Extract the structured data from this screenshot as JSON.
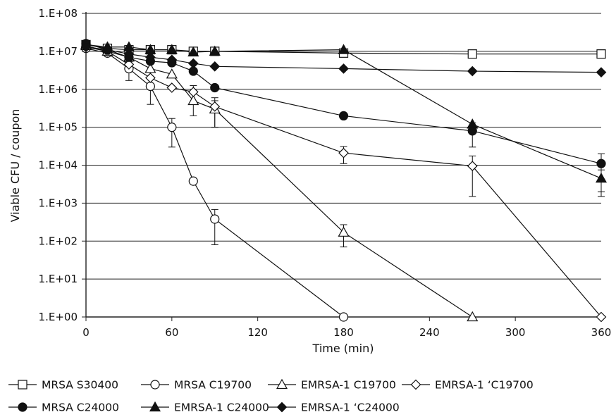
{
  "chart_data": {
    "type": "line",
    "title": "",
    "xlabel": "Time (min)",
    "ylabel": "Viable CFU / coupon",
    "y_scale": "log10",
    "xlim": [
      0,
      360
    ],
    "ylim": [
      1,
      100000000
    ],
    "x_ticks": [
      "0",
      "60",
      "120",
      "180",
      "240",
      "300",
      "360"
    ],
    "y_ticks": [
      "1.E+00",
      "1.E+01",
      "1.E+02",
      "1.E+03",
      "1.E+04",
      "1.E+05",
      "1.E+06",
      "1.E+07",
      "1.E+08"
    ],
    "grid": "horizontal",
    "legend_position": "bottom",
    "series": [
      {
        "name": "MRSA S30400",
        "marker": "square",
        "filled": false,
        "x": [
          0,
          15,
          30,
          45,
          60,
          75,
          90,
          180,
          270,
          360
        ],
        "y": [
          15000000,
          12000000,
          11000000,
          11000000,
          11000000,
          10000000,
          10000000,
          9000000,
          8500000,
          8500000
        ]
      },
      {
        "name": "MRSA C19700",
        "marker": "circle",
        "filled": false,
        "x": [
          0,
          15,
          30,
          45,
          60,
          75,
          90,
          180
        ],
        "y": [
          12000000,
          9000000,
          3500000,
          1200000,
          100000,
          3800,
          380,
          1
        ],
        "err": [
          0,
          0,
          1800000,
          800000,
          70000,
          0,
          300,
          0
        ]
      },
      {
        "name": "EMRSA-1 C19700",
        "marker": "triangle",
        "filled": false,
        "x": [
          0,
          15,
          30,
          45,
          60,
          75,
          90,
          180,
          270
        ],
        "y": [
          14000000,
          10000000,
          7000000,
          3500000,
          2500000,
          500000,
          300000,
          170,
          1
        ],
        "err": [
          0,
          0,
          0,
          0,
          0,
          300000,
          200000,
          100,
          0
        ]
      },
      {
        "name": "EMRSA-1 ‘C19700",
        "marker": "diamond",
        "filled": false,
        "x": [
          0,
          15,
          30,
          45,
          60,
          75,
          90,
          180,
          270,
          360
        ],
        "y": [
          13000000,
          10000000,
          4500000,
          2000000,
          1100000,
          850000,
          350000,
          21000,
          9500,
          1
        ],
        "err": [
          0,
          0,
          0,
          0,
          0,
          400000,
          250000,
          10000,
          8000,
          0
        ]
      },
      {
        "name": "MRSA C24000",
        "marker": "circle",
        "filled": true,
        "x": [
          0,
          15,
          30,
          45,
          60,
          75,
          90,
          180,
          270,
          360
        ],
        "y": [
          16000000,
          11000000,
          7000000,
          5500000,
          5000000,
          3000000,
          1100000,
          200000,
          80000,
          11000
        ],
        "err": [
          0,
          0,
          0,
          0,
          0,
          0,
          0,
          0,
          50000,
          9000
        ]
      },
      {
        "name": "EMRSA-1 C24000",
        "marker": "triangle",
        "filled": true,
        "x": [
          0,
          15,
          30,
          45,
          60,
          75,
          90,
          180,
          270,
          360
        ],
        "y": [
          15000000,
          13000000,
          13000000,
          11000000,
          11000000,
          9500000,
          10000000,
          11000000,
          120000,
          4500
        ],
        "err": [
          0,
          0,
          0,
          0,
          0,
          0,
          0,
          0,
          0,
          3000
        ]
      },
      {
        "name": "EMRSA-1 ‘C24000",
        "marker": "diamond",
        "filled": true,
        "x": [
          0,
          15,
          30,
          45,
          60,
          75,
          90,
          180,
          270,
          360
        ],
        "y": [
          13000000,
          11000000,
          8500000,
          7000000,
          6000000,
          4800000,
          4000000,
          3500000,
          3000000,
          2800000
        ]
      }
    ]
  }
}
